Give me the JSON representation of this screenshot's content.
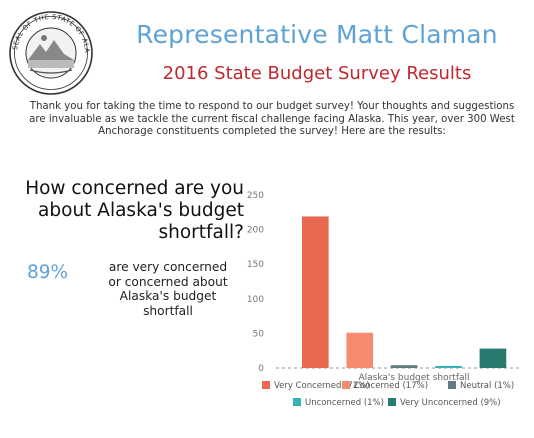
{
  "header": {
    "seal_text": "THE SEAL OF THE STATE OF ALASKA",
    "title": "Representative Matt Claman",
    "subtitle": "2016 State Budget Survey Results"
  },
  "intro": {
    "line1": "Thank you for taking the time to respond to our budget survey! Your thoughts and suggestions",
    "line2": "are invaluable as we tackle the current fiscal challenge facing Alaska. This year, over 300 West",
    "line3": "Anchorage constituents completed the survey! Here are the results:"
  },
  "question": {
    "line1": "How concerned are you",
    "line2": "about Alaska's budget",
    "line3": "shortfall?"
  },
  "highlight": {
    "percent": "89%",
    "line1": "are very concerned",
    "line2": "or concerned about",
    "line3": "Alaska's budget",
    "line4": "shortfall"
  },
  "chart_data": {
    "type": "bar",
    "xlabel": "Alaska's budget shortfall",
    "ylabel": "",
    "ylim": [
      0,
      250
    ],
    "yticks": [
      0,
      50,
      100,
      150,
      200,
      250
    ],
    "grid": false,
    "legend_position": "bottom",
    "series": [
      {
        "name": "Very Concerned (72%)",
        "value": 219,
        "color": "#e8694f"
      },
      {
        "name": "Concerned (17%)",
        "value": 51,
        "color": "#f58c70"
      },
      {
        "name": "Neutral (1%)",
        "value": 4,
        "color": "#5f7d80"
      },
      {
        "name": "Unconcerned (1%)",
        "value": 3,
        "color": "#36b3b8"
      },
      {
        "name": "Very Unconcerned (9%)",
        "value": 28,
        "color": "#277a6e"
      }
    ]
  }
}
